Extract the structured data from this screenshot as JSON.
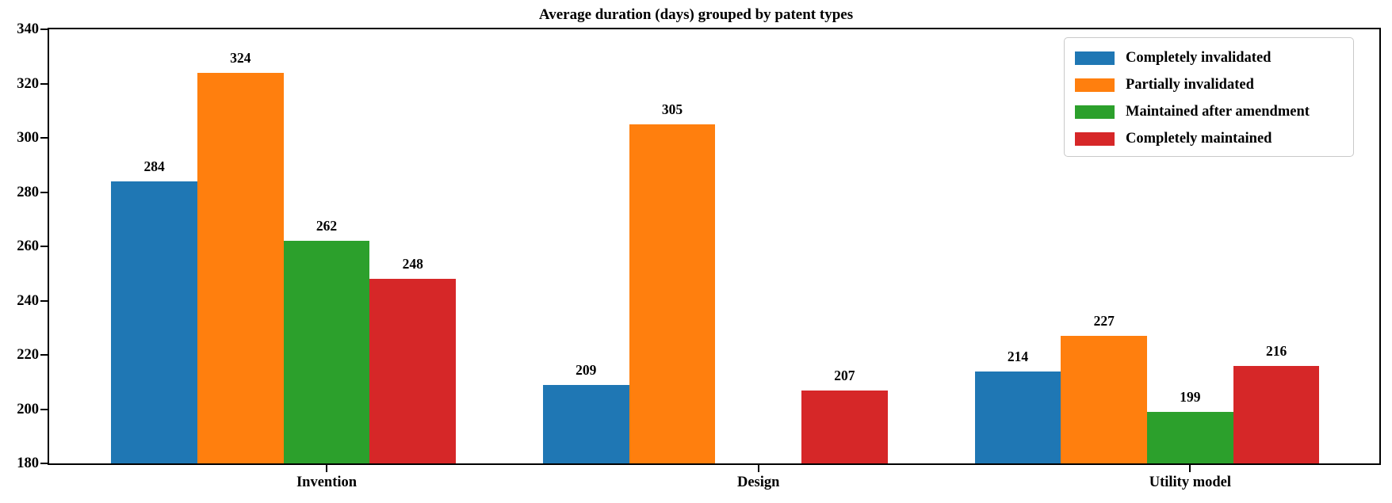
{
  "figure": {
    "title": "Average duration (days) grouped by patent types"
  },
  "chart_data": {
    "type": "bar",
    "title": "Average duration (days) grouped by patent types",
    "categories": [
      "Invention",
      "Design",
      "Utility model"
    ],
    "series": [
      {
        "name": "Completely invalidated",
        "color": "#1f77b4",
        "values": [
          284,
          209,
          214
        ]
      },
      {
        "name": "Partially invalidated",
        "color": "#ff7f0e",
        "values": [
          324,
          305,
          227
        ]
      },
      {
        "name": "Maintained after amendment",
        "color": "#2ca02c",
        "values": [
          262,
          null,
          199
        ]
      },
      {
        "name": "Completely maintained",
        "color": "#d62728",
        "values": [
          248,
          207,
          216
        ]
      }
    ],
    "xlabel": "",
    "ylabel": "",
    "ylim": [
      180,
      340
    ],
    "yticks": [
      180,
      200,
      220,
      240,
      260,
      280,
      300,
      320,
      340
    ],
    "grid": false,
    "legend_position": "upper right",
    "bar_value_labels": true,
    "missing_bars": [
      {
        "category": "Design",
        "series": "Maintained after amendment"
      }
    ]
  }
}
